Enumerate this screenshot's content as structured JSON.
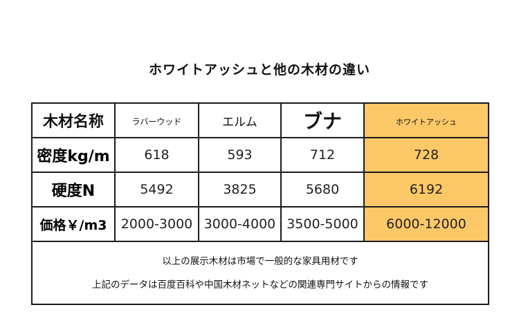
{
  "title": "ホワイトアッシュと他の木材の違い",
  "table": {
    "header": {
      "label": "木材名称",
      "woods": [
        "ラバーウッド",
        "エルム",
        "ブナ",
        "ホワイトアッシュ"
      ]
    },
    "rows": [
      {
        "label": "密度kg/m",
        "values": [
          "618",
          "593",
          "712",
          "728"
        ]
      },
      {
        "label": "硬度N",
        "values": [
          "5492",
          "3825",
          "5680",
          "6192"
        ]
      },
      {
        "label": "価格￥/m3",
        "values": [
          "2000-3000",
          "3000-4000",
          "3500-5000",
          "6000-12000"
        ]
      }
    ],
    "notes": [
      "以上の展示木材は市場で一般的な家具用材です",
      "上記のデータは百度百科や中国木材ネットなどの関連専門サイトからの情報です"
    ]
  },
  "colors": {
    "highlight": "#fdc867",
    "border": "#1a1a1a"
  }
}
